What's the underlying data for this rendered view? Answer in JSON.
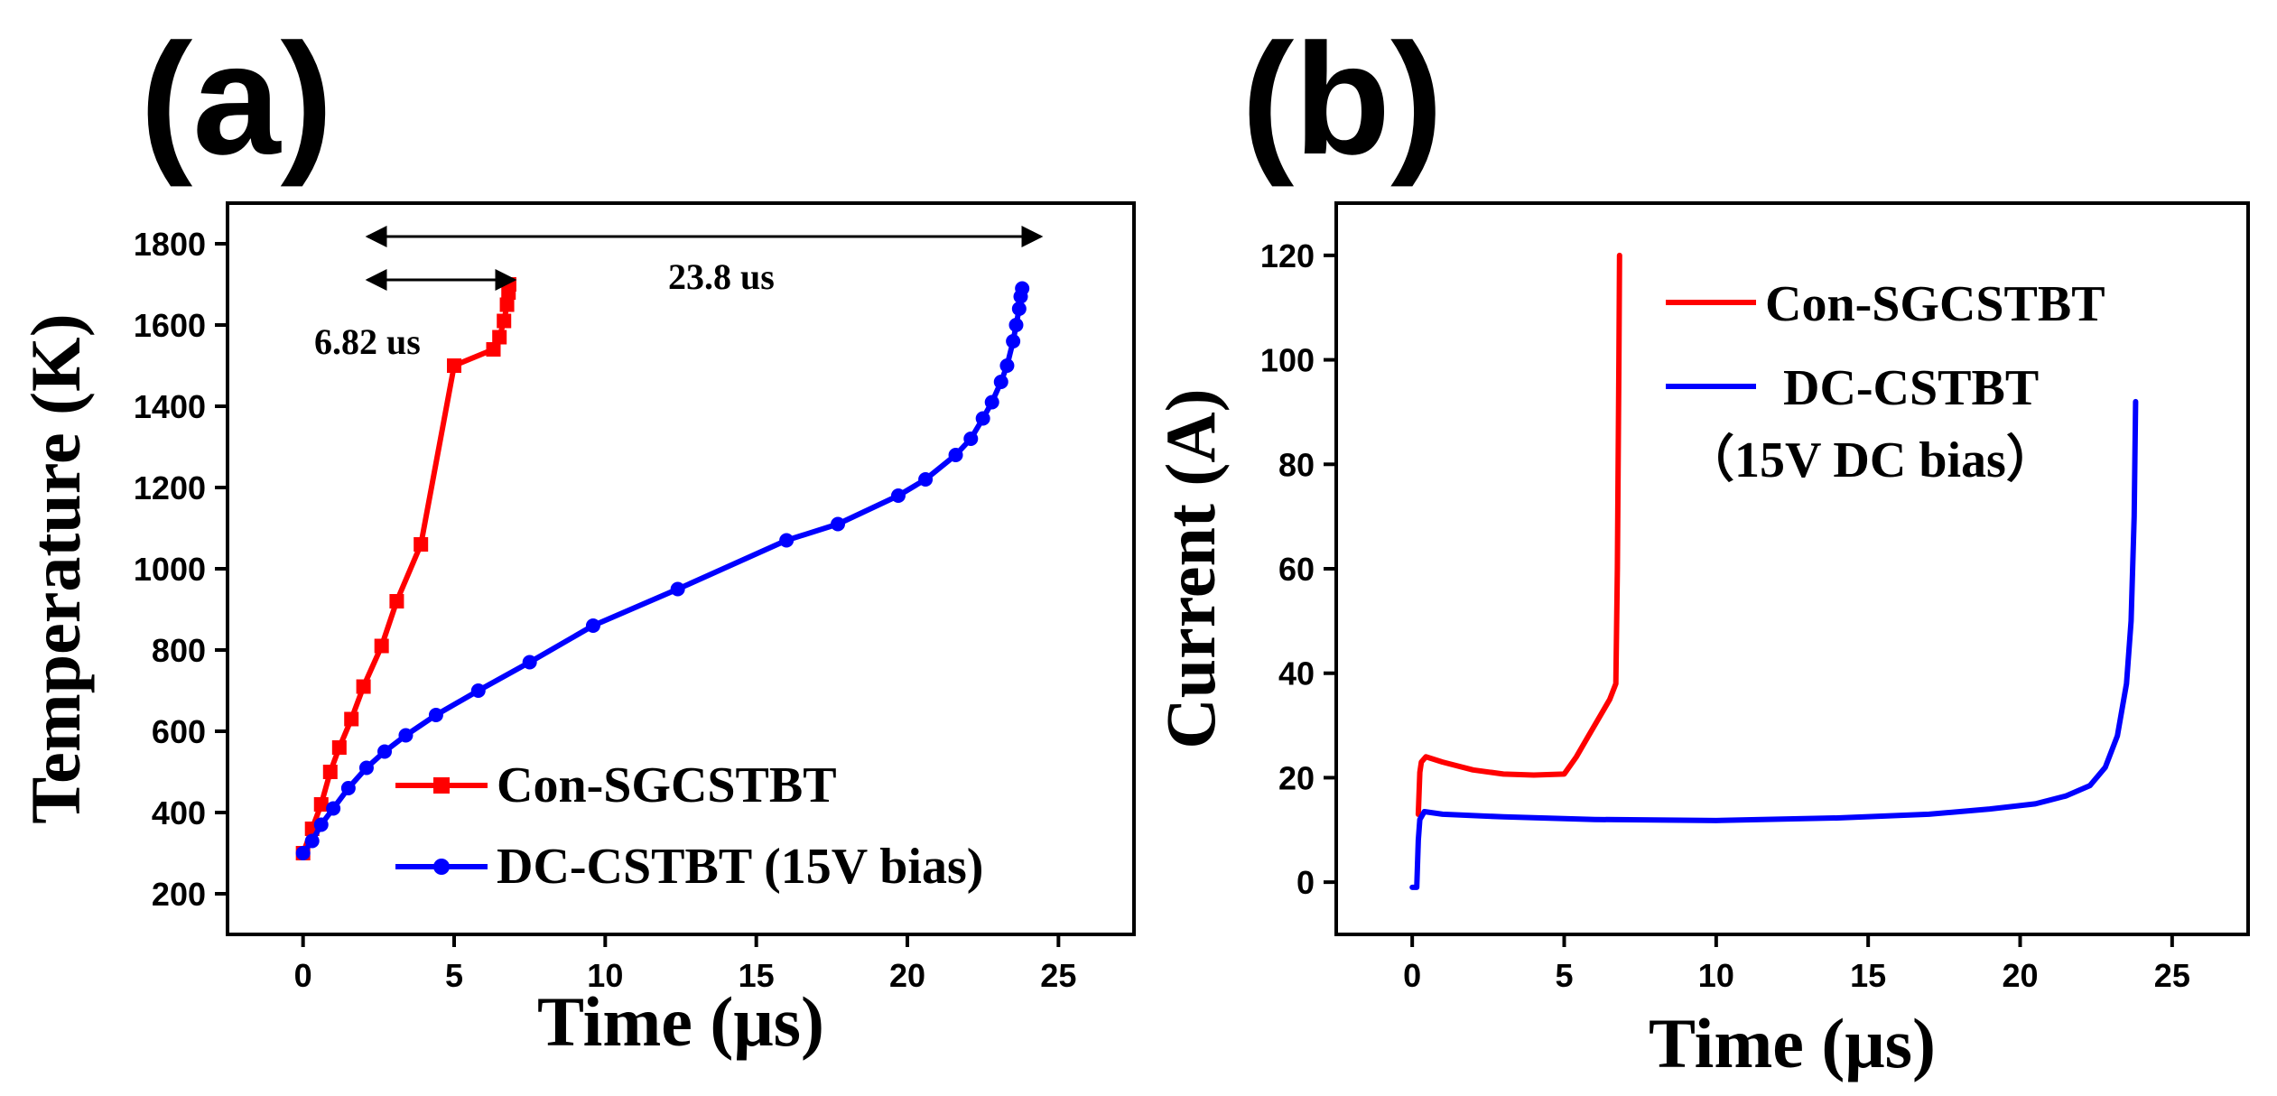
{
  "chart_data": [
    {
      "panel": "(a)",
      "type": "line",
      "title": "",
      "xlabel": "Time (μs)",
      "ylabel": "Temperature (K)",
      "xlim": [
        -2.5,
        27.5
      ],
      "ylim": [
        100,
        1900
      ],
      "xticks": [
        "0",
        "5",
        "10",
        "15",
        "20",
        "25"
      ],
      "yticks": [
        "200",
        "400",
        "600",
        "800",
        "1000",
        "1200",
        "1400",
        "1600",
        "1800"
      ],
      "series": [
        {
          "name": "Con-SGCSTBT",
          "color": "#ff0000",
          "marker": "square",
          "x": [
            0,
            0.3,
            0.6,
            0.9,
            1.2,
            1.6,
            2.0,
            2.6,
            3.1,
            3.9,
            5.0,
            6.3,
            6.5,
            6.65,
            6.75,
            6.8,
            6.82
          ],
          "y": [
            300,
            360,
            420,
            500,
            560,
            630,
            710,
            810,
            920,
            1060,
            1500,
            1540,
            1570,
            1610,
            1650,
            1680,
            1700
          ]
        },
        {
          "name": "DC-CSTBT (15V bias)",
          "color": "#0000ff",
          "marker": "circle",
          "x": [
            0,
            0.3,
            0.6,
            1.0,
            1.5,
            2.1,
            2.7,
            3.4,
            4.4,
            5.8,
            7.5,
            9.6,
            12.4,
            16.0,
            17.7,
            19.7,
            20.6,
            21.6,
            22.1,
            22.5,
            22.8,
            23.1,
            23.3,
            23.5,
            23.6,
            23.7,
            23.75,
            23.8
          ],
          "y": [
            300,
            330,
            370,
            410,
            460,
            510,
            550,
            590,
            640,
            700,
            770,
            860,
            950,
            1070,
            1110,
            1180,
            1220,
            1280,
            1320,
            1370,
            1410,
            1460,
            1500,
            1560,
            1600,
            1640,
            1670,
            1690
          ]
        }
      ],
      "legend": [
        "Con-SGCSTBT",
        "DC-CSTBT  (15V  bias)"
      ],
      "annotations": [
        "6.82 us",
        "23.8 us"
      ]
    },
    {
      "panel": "(b)",
      "type": "line",
      "title": "",
      "xlabel": "Time (μs)",
      "ylabel": "Current (A)",
      "xlim": [
        -2.5,
        27.5
      ],
      "ylim": [
        -10,
        130
      ],
      "xticks": [
        "0",
        "5",
        "10",
        "15",
        "20",
        "25"
      ],
      "yticks": [
        "0",
        "20",
        "40",
        "60",
        "80",
        "100",
        "120"
      ],
      "series": [
        {
          "name": "Con-SGCSTBT",
          "color": "#ff0000",
          "marker": "none",
          "x": [
            0.2,
            0.25,
            0.3,
            0.45,
            1.0,
            2.0,
            3.0,
            4.0,
            5.0,
            5.4,
            5.8,
            6.2,
            6.5,
            6.7,
            6.75,
            6.8,
            6.82
          ],
          "y": [
            13,
            21,
            23,
            24,
            23,
            21.5,
            20.7,
            20.5,
            20.7,
            24,
            28,
            32,
            35,
            38,
            60,
            100,
            120
          ]
        },
        {
          "name": "DC-CSTBT (15V DC bias)",
          "color": "#0000ff",
          "marker": "none",
          "x": [
            0.0,
            0.15,
            0.2,
            0.25,
            0.4,
            1.0,
            3.0,
            6.0,
            10.0,
            14.0,
            17.0,
            19.0,
            20.5,
            21.5,
            22.3,
            22.8,
            23.2,
            23.5,
            23.65,
            23.75,
            23.8
          ],
          "y": [
            -1,
            -1,
            8,
            12,
            13.5,
            13,
            12.5,
            12,
            11.8,
            12.3,
            13,
            14,
            15,
            16.5,
            18.5,
            22,
            28,
            38,
            50,
            70,
            92
          ]
        }
      ],
      "legend": [
        "Con-SGCSTBT",
        "DC-CSTBT",
        "（15V DC bias）"
      ]
    }
  ]
}
